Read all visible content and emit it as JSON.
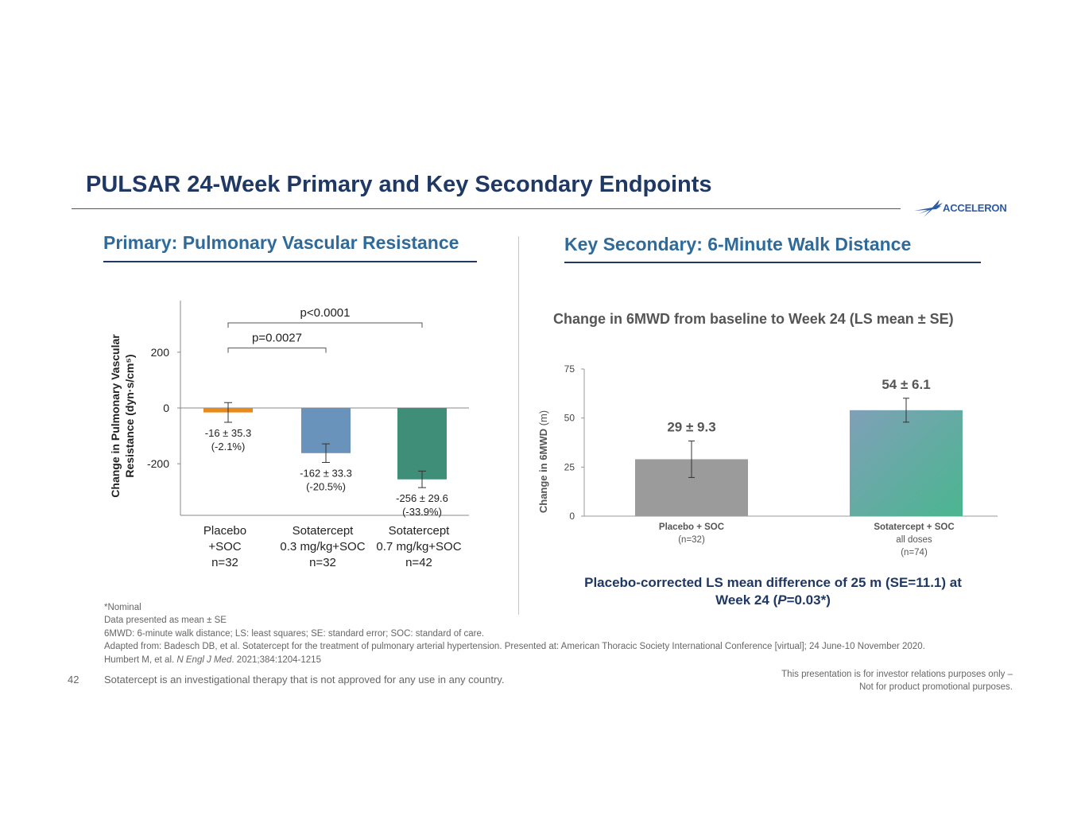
{
  "page": {
    "title": "PULSAR 24-Week Primary and Key Secondary Endpoints",
    "logo_text": "ACCELERON",
    "page_number": "42"
  },
  "colors": {
    "title": "#1f3864",
    "section": "#2e6a9a",
    "placebo_bar": "#e8891a",
    "dose03_bar": "#6a93bb",
    "dose07_bar": "#3f8f78",
    "walk_placebo": "#9b9b9b",
    "walk_sota_start": "#7fa0b8",
    "walk_sota_end": "#4ab68f"
  },
  "left_section": {
    "heading": "Primary: Pulmonary Vascular Resistance"
  },
  "right_section": {
    "heading": "Key Secondary: 6-Minute Walk Distance"
  },
  "chart_data": [
    {
      "type": "bar",
      "title": "",
      "ylabel_line1": "Change in Pulmonary Vascular",
      "ylabel_line2": "Resistance (dyn·s/cm⁵)",
      "ylim": [
        -385,
        385
      ],
      "yticks": [
        200,
        0,
        -200
      ],
      "categories": [
        [
          "Placebo",
          "+SOC",
          "n=32"
        ],
        [
          "Sotatercept",
          "0.3 mg/kg+SOC",
          "n=32"
        ],
        [
          "Sotatercept",
          "0.7 mg/kg+SOC",
          "n=42"
        ]
      ],
      "values": [
        -16,
        -162,
        -256
      ],
      "errors": [
        35.3,
        33.3,
        29.6
      ],
      "data_labels": [
        [
          "-16 ± 35.3",
          "(-2.1%)"
        ],
        [
          "-162 ± 33.3",
          "(-20.5%)"
        ],
        [
          "-256 ± 29.6",
          "(-33.9%)"
        ]
      ],
      "comparisons": [
        {
          "label": "p=0.0027",
          "from": 0,
          "to": 1
        },
        {
          "label": "p<0.0001",
          "from": 0,
          "to": 2
        }
      ]
    },
    {
      "type": "bar",
      "title": "Change in 6MWD from baseline to Week 24 (LS mean ± SE)",
      "ylabel": "Change in 6MWD",
      "ylabel_unit": "(m)",
      "ylim": [
        0,
        75
      ],
      "yticks": [
        75,
        50,
        25,
        0
      ],
      "categories": [
        [
          "Placebo + SOC",
          "(n=32)"
        ],
        [
          "Sotatercept + SOC",
          "all doses",
          "(n=74)"
        ]
      ],
      "values": [
        29,
        54
      ],
      "errors": [
        9.3,
        6.1
      ],
      "data_labels": [
        "29 ± 9.3",
        "54 ± 6.1"
      ]
    }
  ],
  "walk_caption": {
    "line1": "Placebo-corrected LS mean difference of 25 m (SE=11.1) at",
    "line2_pre": "Week 24 (",
    "line2_p": "P",
    "line2_post": "=0.03*)"
  },
  "footnotes": {
    "nominal": "*Nominal",
    "mean_se": "Data presented as mean ± SE",
    "abbrev": "6MWD: 6-minute walk distance; LS: least squares; SE: standard error; SOC: standard of care.",
    "adapted": "Adapted from: Badesch DB, et al. Sotatercept for the treatment of pulmonary arterial hypertension. Presented at: American Thoracic Society International Conference [virtual]; 24 June-10 November 2020.",
    "humbert_pre": "Humbert M, et al. ",
    "humbert_journal": "N Engl J Med",
    "humbert_post": ". 2021;384:1204-1215",
    "investigational": "Sotatercept is an investigational therapy that is not approved for any use in any country."
  },
  "disclaimer": {
    "line1": "This presentation is for investor relations purposes only –",
    "line2": "Not for product promotional purposes."
  }
}
